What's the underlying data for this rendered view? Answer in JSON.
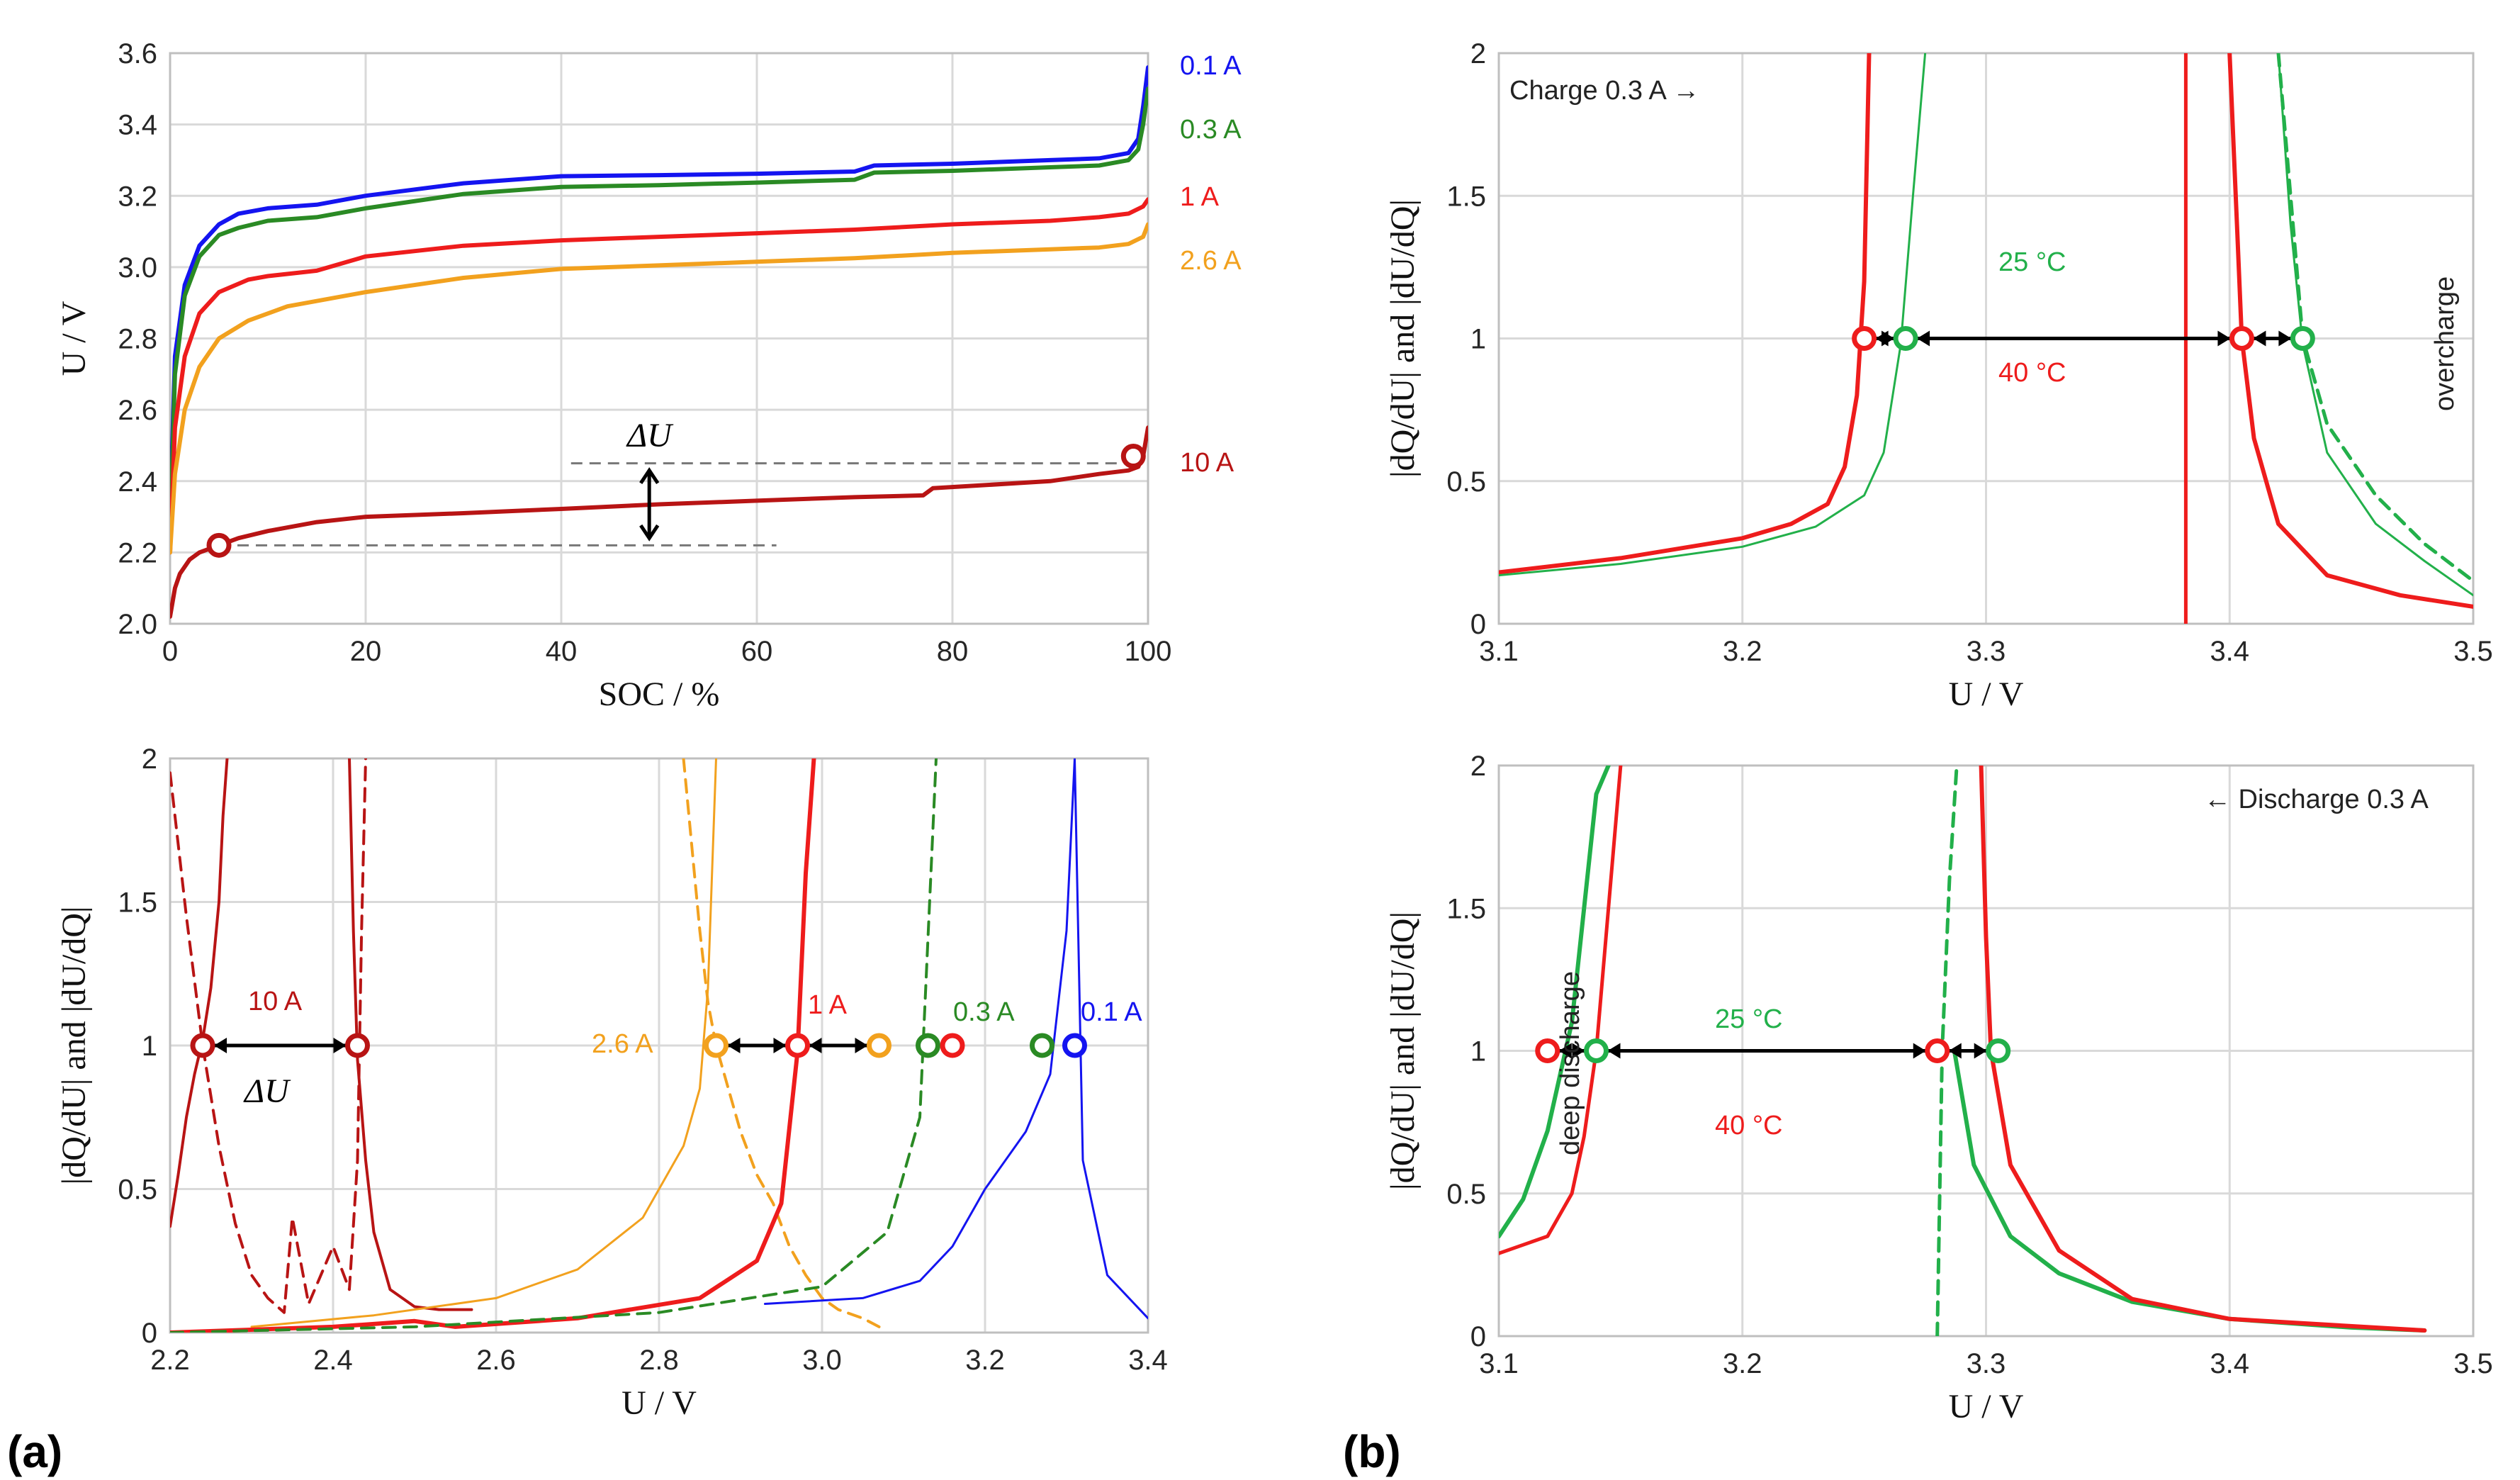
{
  "panel_labels": {
    "a": "(a)",
    "b": "(b)"
  },
  "colors": {
    "c01": "#1414f0",
    "c03": "#2a8a24",
    "c1": "#ee1c1c",
    "c26": "#f2a11e",
    "c10": "#b81414",
    "g25": "#22b04a",
    "r40": "#ee1c1c"
  },
  "chart_data": [
    {
      "id": "a-top",
      "type": "line",
      "xlabel": "SOC / %",
      "ylabel": "U / V",
      "xlim": [
        0,
        100
      ],
      "ylim": [
        2.0,
        3.6
      ],
      "x_ticks": [
        "0",
        "20",
        "40",
        "60",
        "80",
        "100"
      ],
      "y_ticks": [
        "2.0",
        "2.2",
        "2.4",
        "2.6",
        "2.8",
        "3.0",
        "3.2",
        "3.4",
        "3.6"
      ],
      "series": [
        {
          "name": "0.1 A",
          "color": "c01",
          "x": [
            0,
            0.5,
            1.5,
            3,
            5,
            7,
            10,
            15,
            20,
            30,
            40,
            50,
            60,
            70,
            72,
            80,
            90,
            95,
            98,
            99,
            99.5,
            100
          ],
          "y": [
            2.3,
            2.75,
            2.95,
            3.06,
            3.12,
            3.15,
            3.165,
            3.175,
            3.2,
            3.235,
            3.255,
            3.258,
            3.262,
            3.268,
            3.285,
            3.29,
            3.3,
            3.305,
            3.32,
            3.36,
            3.45,
            3.56
          ]
        },
        {
          "name": "0.3 A",
          "color": "c03",
          "x": [
            0,
            0.5,
            1.5,
            3,
            5,
            7,
            10,
            15,
            20,
            30,
            40,
            50,
            60,
            70,
            72,
            80,
            90,
            95,
            98,
            99,
            99.5,
            100
          ],
          "y": [
            2.25,
            2.7,
            2.92,
            3.03,
            3.09,
            3.11,
            3.13,
            3.14,
            3.165,
            3.205,
            3.225,
            3.23,
            3.237,
            3.245,
            3.265,
            3.27,
            3.28,
            3.285,
            3.3,
            3.33,
            3.4,
            3.5
          ]
        },
        {
          "name": "1 A",
          "color": "c1",
          "x": [
            0,
            0.5,
            1.5,
            3,
            5,
            8,
            10,
            15,
            20,
            30,
            40,
            50,
            60,
            70,
            80,
            90,
            95,
            98,
            99.5,
            100
          ],
          "y": [
            2.2,
            2.55,
            2.75,
            2.87,
            2.93,
            2.965,
            2.975,
            2.99,
            3.03,
            3.06,
            3.075,
            3.085,
            3.095,
            3.105,
            3.12,
            3.13,
            3.14,
            3.15,
            3.17,
            3.19
          ]
        },
        {
          "name": "2.6 A",
          "color": "c26",
          "x": [
            0,
            0.5,
            1.5,
            3,
            5,
            8,
            12,
            20,
            30,
            40,
            50,
            60,
            70,
            80,
            90,
            95,
            98,
            99.5,
            100
          ],
          "y": [
            2.2,
            2.42,
            2.6,
            2.72,
            2.8,
            2.85,
            2.89,
            2.93,
            2.97,
            2.995,
            3.005,
            3.015,
            3.025,
            3.04,
            3.05,
            3.055,
            3.065,
            3.085,
            3.12
          ]
        },
        {
          "name": "10 A",
          "color": "c10",
          "x": [
            0,
            0.5,
            1,
            2,
            3,
            5,
            7,
            10,
            15,
            20,
            30,
            40,
            50,
            60,
            70,
            77,
            78,
            90,
            95,
            98,
            99,
            99.5,
            100
          ],
          "y": [
            2.02,
            2.1,
            2.14,
            2.18,
            2.2,
            2.22,
            2.24,
            2.26,
            2.285,
            2.3,
            2.31,
            2.322,
            2.335,
            2.345,
            2.355,
            2.36,
            2.38,
            2.4,
            2.42,
            2.43,
            2.44,
            2.47,
            2.55
          ]
        }
      ],
      "markers": [
        {
          "x": 5,
          "y": 2.22
        },
        {
          "x": 98.5,
          "y": 2.47
        }
      ],
      "annotation": "ΔU"
    },
    {
      "id": "a-bottom",
      "type": "line",
      "xlabel": "U / V",
      "ylabel": "|dQ/dU| and |dU/dQ|",
      "xlim": [
        2.2,
        3.4
      ],
      "ylim": [
        0,
        2
      ],
      "x_ticks": [
        "2.2",
        "2.4",
        "2.6",
        "2.8",
        "3.0",
        "3.2",
        "3.4"
      ],
      "y_ticks": [
        "0",
        "0.5",
        "1",
        "1.5",
        "2"
      ],
      "series": [
        {
          "name": "10 A dQ/dU",
          "color": "c10",
          "width": 4,
          "x": [
            2.2,
            2.21,
            2.22,
            2.23,
            2.24,
            2.25,
            2.26,
            2.265,
            2.27
          ],
          "y": [
            0.37,
            0.55,
            0.75,
            0.9,
            1.02,
            1.2,
            1.5,
            1.8,
            2.0
          ]
        },
        {
          "name": "10 A dU/dQ",
          "color": "c10",
          "width": 4,
          "x": [
            2.42,
            2.425,
            2.43,
            2.44,
            2.45,
            2.47,
            2.5,
            2.53,
            2.57
          ],
          "y": [
            2.0,
            1.4,
            0.95,
            0.6,
            0.35,
            0.15,
            0.09,
            0.08,
            0.08
          ]
        },
        {
          "name": "10 A dashed",
          "color": "c10",
          "width": 4,
          "dash": true,
          "x": [
            2.2,
            2.22,
            2.24,
            2.26,
            2.28,
            2.3,
            2.32,
            2.34,
            2.35,
            2.37,
            2.4,
            2.42,
            2.43,
            2.435,
            2.44
          ],
          "y": [
            1.95,
            1.45,
            1.0,
            0.65,
            0.38,
            0.2,
            0.12,
            0.07,
            0.4,
            0.1,
            0.3,
            0.15,
            0.6,
            1.4,
            2.0
          ]
        },
        {
          "name": "2.6 A",
          "color": "c26",
          "width": 3,
          "x": [
            2.3,
            2.45,
            2.6,
            2.7,
            2.78,
            2.83,
            2.85,
            2.86,
            2.87
          ],
          "y": [
            0.02,
            0.06,
            0.12,
            0.22,
            0.4,
            0.65,
            0.85,
            1.2,
            2.0
          ]
        },
        {
          "name": "2.6 A dashed",
          "color": "c26",
          "width": 4,
          "dash": true,
          "x": [
            2.83,
            2.84,
            2.85,
            2.86,
            2.87,
            2.88,
            2.9,
            2.92,
            2.94,
            2.96,
            2.98,
            3.0,
            3.02,
            3.05,
            3.07
          ],
          "y": [
            2.0,
            1.7,
            1.4,
            1.15,
            1.0,
            0.9,
            0.7,
            0.55,
            0.45,
            0.3,
            0.2,
            0.12,
            0.08,
            0.05,
            0.02
          ]
        },
        {
          "name": "1 A",
          "color": "c1",
          "width": 6,
          "x": [
            2.2,
            2.4,
            2.5,
            2.55,
            2.7,
            2.85,
            2.92,
            2.95,
            2.97,
            2.98,
            2.99
          ],
          "y": [
            0.0,
            0.02,
            0.04,
            0.02,
            0.05,
            0.12,
            0.25,
            0.45,
            0.98,
            1.6,
            2.0
          ]
        },
        {
          "name": "0.3 A",
          "color": "c03",
          "width": 4,
          "dash": true,
          "x": [
            2.2,
            2.5,
            2.8,
            3.0,
            3.08,
            3.12,
            3.14
          ],
          "y": [
            0.0,
            0.02,
            0.07,
            0.16,
            0.35,
            0.75,
            2.0
          ]
        },
        {
          "name": "0.1 A",
          "color": "c01",
          "width": 3,
          "x": [
            2.93,
            3.05,
            3.12,
            3.16,
            3.2,
            3.25,
            3.28,
            3.3,
            3.31,
            3.32,
            3.35,
            3.4
          ],
          "y": [
            0.1,
            0.12,
            0.18,
            0.3,
            0.5,
            0.7,
            0.9,
            1.4,
            2.0,
            0.6,
            0.2,
            0.05
          ]
        }
      ],
      "markers": [
        {
          "x": 2.24,
          "y": 1,
          "color": "c10"
        },
        {
          "x": 2.43,
          "y": 1,
          "color": "c10"
        },
        {
          "x": 2.87,
          "y": 1,
          "color": "c26"
        },
        {
          "x": 2.97,
          "y": 1,
          "color": "c1"
        },
        {
          "x": 3.07,
          "y": 1,
          "color": "c26"
        },
        {
          "x": 3.13,
          "y": 1,
          "color": "c03"
        },
        {
          "x": 3.16,
          "y": 1,
          "color": "c1"
        },
        {
          "x": 3.27,
          "y": 1,
          "color": "c03"
        },
        {
          "x": 3.31,
          "y": 1,
          "color": "c01"
        }
      ],
      "arrows": [
        [
          2.24,
          2.43
        ],
        [
          2.87,
          2.97
        ],
        [
          2.97,
          3.07
        ]
      ],
      "annotations": {
        "l10": "10 A",
        "du": "ΔU",
        "l26": "2.6 A",
        "l1": "1 A",
        "l03": "0.3 A",
        "l01": "0.1 A"
      }
    },
    {
      "id": "b-top",
      "type": "line",
      "xlabel": "U / V",
      "ylabel": "|dQ/dU| and |dU/dQ|",
      "xlim": [
        3.1,
        3.5
      ],
      "ylim": [
        0,
        2
      ],
      "x_ticks": [
        "3.1",
        "3.2",
        "3.3",
        "3.4",
        "3.5"
      ],
      "y_ticks": [
        "0",
        "0.5",
        "1",
        "1.5",
        "2"
      ],
      "series": [
        {
          "name": "40 °C dQ/dU",
          "color": "r40",
          "width": 6,
          "x": [
            3.1,
            3.15,
            3.2,
            3.22,
            3.235,
            3.242,
            3.247,
            3.25,
            3.252
          ],
          "y": [
            0.18,
            0.23,
            0.3,
            0.35,
            0.42,
            0.55,
            0.8,
            1.2,
            2.0
          ]
        },
        {
          "name": "25 °C dQ/dU",
          "color": "g25",
          "width": 3,
          "x": [
            3.1,
            3.15,
            3.2,
            3.23,
            3.25,
            3.258,
            3.265,
            3.27,
            3.275
          ],
          "y": [
            0.17,
            0.21,
            0.27,
            0.34,
            0.45,
            0.6,
            0.98,
            1.5,
            2.0
          ]
        },
        {
          "name": "40 °C dU/dQ",
          "color": "r40",
          "width": 6,
          "x": [
            3.4,
            3.403,
            3.405,
            3.41,
            3.42,
            3.44,
            3.47,
            3.5
          ],
          "y": [
            2.0,
            1.4,
            1.0,
            0.65,
            0.35,
            0.17,
            0.1,
            0.06
          ]
        },
        {
          "name": "25 °C dU/dQ",
          "color": "g25",
          "width": 3,
          "x": [
            3.42,
            3.425,
            3.43,
            3.44,
            3.46,
            3.48,
            3.5
          ],
          "y": [
            2.0,
            1.4,
            0.98,
            0.6,
            0.35,
            0.22,
            0.1
          ]
        },
        {
          "name": "25 °C dashed",
          "color": "g25",
          "width": 5,
          "dash": true,
          "x": [
            3.42,
            3.425,
            3.43,
            3.44,
            3.46,
            3.48,
            3.5
          ],
          "y": [
            2.0,
            1.5,
            1.0,
            0.7,
            0.45,
            0.28,
            0.15
          ]
        },
        {
          "name": "40 °C vertical",
          "color": "r40",
          "width": 5,
          "x": [
            3.382,
            3.382
          ],
          "y": [
            0.0,
            2.0
          ]
        }
      ],
      "markers": [
        {
          "x": 3.25,
          "y": 1,
          "color": "r40"
        },
        {
          "x": 3.267,
          "y": 1,
          "color": "g25"
        },
        {
          "x": 3.405,
          "y": 1,
          "color": "r40"
        },
        {
          "x": 3.43,
          "y": 1,
          "color": "g25"
        }
      ],
      "arrows": [
        [
          3.25,
          3.267
        ],
        [
          3.267,
          3.405
        ],
        [
          3.405,
          3.43
        ]
      ],
      "annotations": {
        "title": "Charge 0.3 A →",
        "t25": "25 °C",
        "t40": "40 °C",
        "side": "overcharge"
      }
    },
    {
      "id": "b-bottom",
      "type": "line",
      "xlabel": "U / V",
      "ylabel": "|dQ/dU| and |dU/dQ|",
      "xlim": [
        3.1,
        3.5
      ],
      "ylim": [
        0,
        2
      ],
      "x_ticks": [
        "3.1",
        "3.2",
        "3.3",
        "3.4",
        "3.5"
      ],
      "y_ticks": [
        "0",
        "0.5",
        "1",
        "1.5",
        "2"
      ],
      "series": [
        {
          "name": "25 °C left",
          "color": "g25",
          "width": 6,
          "x": [
            3.1,
            3.11,
            3.12,
            3.13,
            3.135,
            3.14,
            3.145
          ],
          "y": [
            0.35,
            0.48,
            0.72,
            1.1,
            1.5,
            1.9,
            2.0
          ]
        },
        {
          "name": "40 °C left",
          "color": "r40",
          "width": 5,
          "x": [
            3.1,
            3.12,
            3.13,
            3.135,
            3.14,
            3.145,
            3.15
          ],
          "y": [
            0.29,
            0.35,
            0.5,
            0.7,
            1.0,
            1.5,
            2.0
          ]
        },
        {
          "name": "25 °C dashed",
          "color": "g25",
          "width": 5,
          "dash": true,
          "x": [
            3.28,
            3.282,
            3.285,
            3.288
          ],
          "y": [
            0.0,
            1.0,
            1.6,
            2.0
          ]
        },
        {
          "name": "25 °C right",
          "color": "g25",
          "width": 6,
          "x": [
            3.287,
            3.295,
            3.31,
            3.33,
            3.36,
            3.4,
            3.45,
            3.48
          ],
          "y": [
            1.0,
            0.6,
            0.35,
            0.22,
            0.12,
            0.06,
            0.03,
            0.02
          ]
        },
        {
          "name": "40 °C right",
          "color": "r40",
          "width": 6,
          "x": [
            3.298,
            3.3,
            3.302,
            3.31,
            3.33,
            3.36,
            3.4,
            3.48
          ],
          "y": [
            2.0,
            1.4,
            1.0,
            0.6,
            0.3,
            0.13,
            0.06,
            0.02
          ]
        }
      ],
      "markers": [
        {
          "x": 3.12,
          "y": 1,
          "color": "r40"
        },
        {
          "x": 3.14,
          "y": 1,
          "color": "g25"
        },
        {
          "x": 3.28,
          "y": 1,
          "color": "r40"
        },
        {
          "x": 3.305,
          "y": 1,
          "color": "g25"
        }
      ],
      "arrows": [
        [
          3.12,
          3.14
        ],
        [
          3.14,
          3.28
        ],
        [
          3.28,
          3.305
        ]
      ],
      "annotations": {
        "title": "← Discharge 0.3 A",
        "t25": "25 °C",
        "t40": "40 °C",
        "side": "deep discharge"
      }
    }
  ]
}
